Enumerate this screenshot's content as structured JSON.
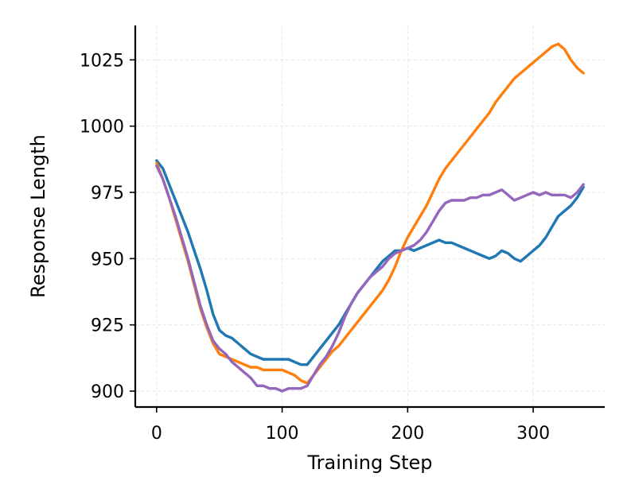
{
  "chart_data": {
    "type": "line",
    "xlabel": "Training Step",
    "ylabel": "Response Length",
    "xlim": [
      -17,
      357
    ],
    "ylim": [
      894,
      1038
    ],
    "xticks": [
      0,
      100,
      200,
      300
    ],
    "yticks": [
      900,
      925,
      950,
      975,
      1000,
      1025
    ],
    "grid": true,
    "series": [
      {
        "color": "#1f77b4",
        "x": [
          0,
          5,
          10,
          15,
          20,
          25,
          30,
          35,
          40,
          45,
          50,
          55,
          60,
          65,
          70,
          75,
          80,
          85,
          90,
          95,
          100,
          105,
          110,
          115,
          120,
          125,
          130,
          135,
          140,
          145,
          150,
          155,
          160,
          165,
          170,
          175,
          180,
          185,
          190,
          195,
          200,
          205,
          210,
          215,
          220,
          225,
          230,
          235,
          240,
          245,
          250,
          255,
          260,
          265,
          270,
          275,
          280,
          285,
          290,
          295,
          300,
          305,
          310,
          315,
          320,
          325,
          330,
          335,
          340
        ],
        "y": [
          987,
          984,
          978,
          972,
          966,
          960,
          953,
          946,
          938,
          929,
          923,
          921,
          920,
          918,
          916,
          914,
          913,
          912,
          912,
          912,
          912,
          912,
          911,
          910,
          910,
          913,
          916,
          919,
          922,
          925,
          929,
          933,
          937,
          940,
          943,
          946,
          949,
          951,
          953,
          953,
          954,
          953,
          954,
          955,
          956,
          957,
          956,
          956,
          955,
          954,
          953,
          952,
          951,
          950,
          951,
          953,
          952,
          950,
          949,
          951,
          953,
          955,
          958,
          962,
          966,
          968,
          970,
          973,
          977
        ]
      },
      {
        "color": "#ff7f0e",
        "x": [
          0,
          5,
          10,
          15,
          20,
          25,
          30,
          35,
          40,
          45,
          50,
          55,
          60,
          65,
          70,
          75,
          80,
          85,
          90,
          95,
          100,
          105,
          110,
          115,
          120,
          125,
          130,
          135,
          140,
          145,
          150,
          155,
          160,
          165,
          170,
          175,
          180,
          185,
          190,
          195,
          200,
          205,
          210,
          215,
          220,
          225,
          230,
          235,
          240,
          245,
          250,
          255,
          260,
          265,
          270,
          275,
          280,
          285,
          290,
          295,
          300,
          305,
          310,
          315,
          320,
          325,
          330,
          335,
          340
        ],
        "y": [
          986,
          980,
          973,
          965,
          957,
          949,
          940,
          931,
          924,
          918,
          914,
          913,
          912,
          911,
          910,
          909,
          909,
          908,
          908,
          908,
          908,
          907,
          906,
          904,
          903,
          906,
          909,
          912,
          915,
          917,
          920,
          923,
          926,
          929,
          932,
          935,
          938,
          942,
          947,
          953,
          958,
          962,
          966,
          970,
          975,
          980,
          984,
          987,
          990,
          993,
          996,
          999,
          1002,
          1005,
          1009,
          1012,
          1015,
          1018,
          1020,
          1022,
          1024,
          1026,
          1028,
          1030,
          1031,
          1029,
          1025,
          1022,
          1020
        ]
      },
      {
        "color": "#9467bd",
        "x": [
          0,
          5,
          10,
          15,
          20,
          25,
          30,
          35,
          40,
          45,
          50,
          55,
          60,
          65,
          70,
          75,
          80,
          85,
          90,
          95,
          100,
          105,
          110,
          115,
          120,
          125,
          130,
          135,
          140,
          145,
          150,
          155,
          160,
          165,
          170,
          175,
          180,
          185,
          190,
          195,
          200,
          205,
          210,
          215,
          220,
          225,
          230,
          235,
          240,
          245,
          250,
          255,
          260,
          265,
          270,
          275,
          280,
          285,
          290,
          295,
          300,
          305,
          310,
          315,
          320,
          325,
          330,
          335,
          340
        ],
        "y": [
          985,
          980,
          973,
          966,
          958,
          950,
          941,
          932,
          925,
          919,
          916,
          914,
          911,
          909,
          907,
          905,
          902,
          902,
          901,
          901,
          900,
          901,
          901,
          901,
          902,
          906,
          910,
          913,
          917,
          922,
          928,
          933,
          937,
          940,
          943,
          945,
          947,
          950,
          952,
          953,
          954,
          955,
          957,
          960,
          964,
          968,
          971,
          972,
          972,
          972,
          973,
          973,
          974,
          974,
          975,
          976,
          974,
          972,
          973,
          974,
          975,
          974,
          975,
          974,
          974,
          974,
          973,
          975,
          978
        ]
      }
    ]
  }
}
